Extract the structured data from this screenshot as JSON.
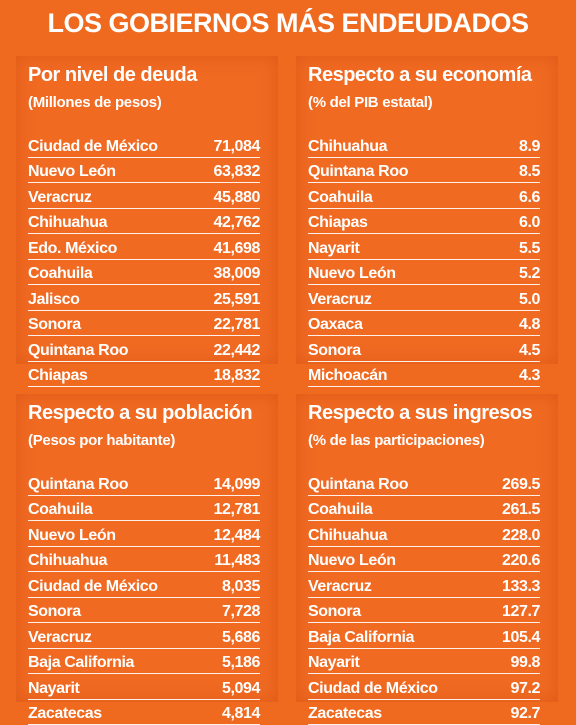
{
  "title": "LOS GOBIERNOS MÁS ENDEUDADOS",
  "panels": [
    {
      "title": "Por nivel de deuda",
      "subtitle": "(Millones de pesos)",
      "rows": [
        {
          "name": "Ciudad de México",
          "value": "71,084"
        },
        {
          "name": "Nuevo León",
          "value": "63,832"
        },
        {
          "name": "Veracruz",
          "value": "45,880"
        },
        {
          "name": "Chihuahua",
          "value": "42,762"
        },
        {
          "name": "Edo. México",
          "value": "41,698"
        },
        {
          "name": "Coahuila",
          "value": "38,009"
        },
        {
          "name": "Jalisco",
          "value": "25,591"
        },
        {
          "name": "Sonora",
          "value": "22,781"
        },
        {
          "name": "Quintana Roo",
          "value": "22,442"
        },
        {
          "name": "Chiapas",
          "value": "18,832"
        }
      ]
    },
    {
      "title": "Respecto a su economía",
      "subtitle": "(% del PIB estatal)",
      "rows": [
        {
          "name": "Chihuahua",
          "value": "8.9"
        },
        {
          "name": "Quintana Roo",
          "value": "8.5"
        },
        {
          "name": "Coahuila",
          "value": "6.6"
        },
        {
          "name": "Chiapas",
          "value": "6.0"
        },
        {
          "name": "Nayarit",
          "value": "5.5"
        },
        {
          "name": "Nuevo León",
          "value": "5.2"
        },
        {
          "name": "Veracruz",
          "value": "5.0"
        },
        {
          "name": "Oaxaca",
          "value": "4.8"
        },
        {
          "name": "Sonora",
          "value": "4.5"
        },
        {
          "name": "Michoacán",
          "value": "4.3"
        }
      ]
    },
    {
      "title": "Respecto a su población",
      "subtitle": "(Pesos por habitante)",
      "rows": [
        {
          "name": "Quintana Roo",
          "value": "14,099"
        },
        {
          "name": "Coahuila",
          "value": "12,781"
        },
        {
          "name": "Nuevo León",
          "value": "12,484"
        },
        {
          "name": "Chihuahua",
          "value": "11,483"
        },
        {
          "name": "Ciudad de México",
          "value": "8,035"
        },
        {
          "name": "Sonora",
          "value": "7,728"
        },
        {
          "name": "Veracruz",
          "value": "5,686"
        },
        {
          "name": "Baja California",
          "value": "5,186"
        },
        {
          "name": "Nayarit",
          "value": "5,094"
        },
        {
          "name": "Zacatecas",
          "value": "4,814"
        }
      ]
    },
    {
      "title": "Respecto a sus ingresos",
      "subtitle": "(% de las participaciones)",
      "rows": [
        {
          "name": "Quintana Roo",
          "value": "269.5"
        },
        {
          "name": "Coahuila",
          "value": "261.5"
        },
        {
          "name": "Chihuahua",
          "value": "228.0"
        },
        {
          "name": "Nuevo León",
          "value": "220.6"
        },
        {
          "name": "Veracruz",
          "value": "133.3"
        },
        {
          "name": "Sonora",
          "value": "127.7"
        },
        {
          "name": "Baja California",
          "value": "105.4"
        },
        {
          "name": "Nayarit",
          "value": "99.8"
        },
        {
          "name": "Ciudad de México",
          "value": "97.2"
        },
        {
          "name": "Zacatecas",
          "value": "92.7"
        }
      ]
    }
  ]
}
